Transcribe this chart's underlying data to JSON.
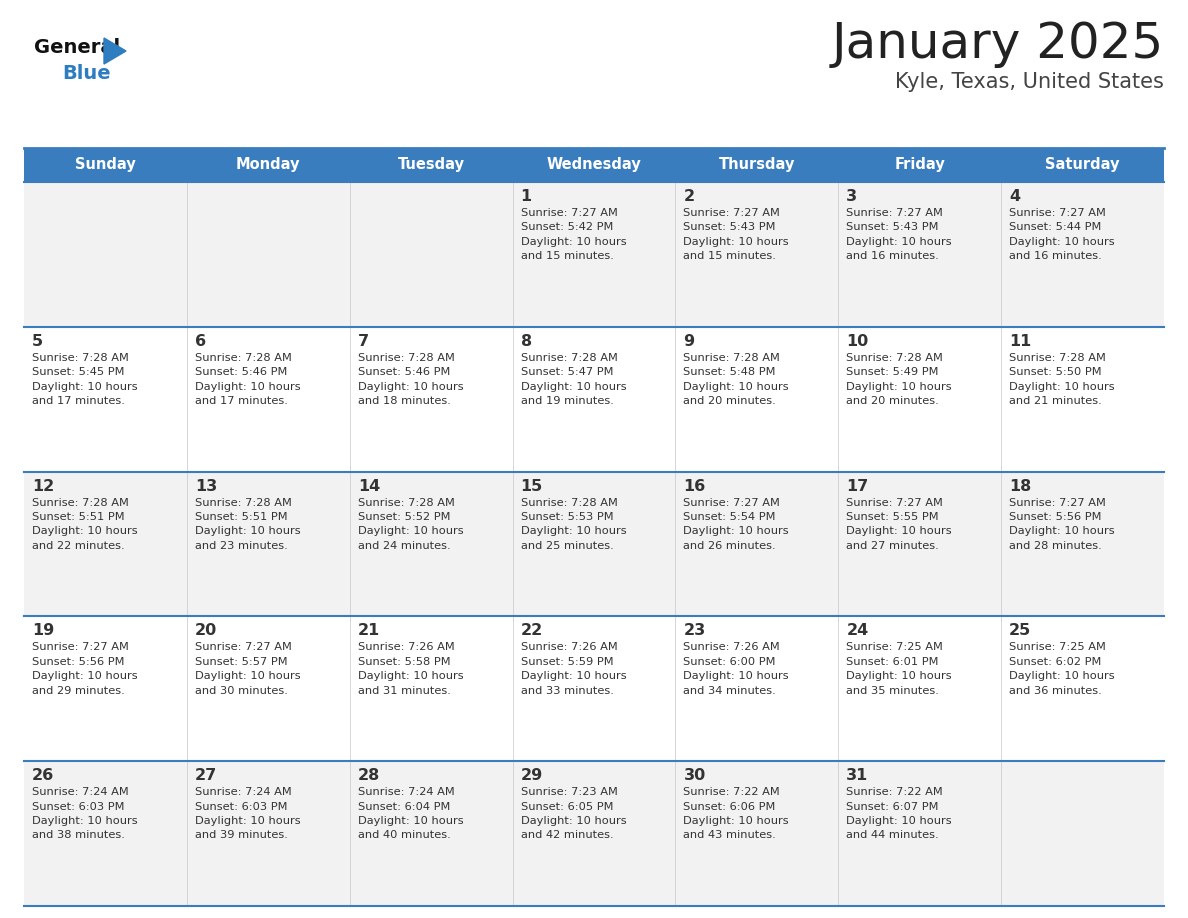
{
  "title": "January 2025",
  "subtitle": "Kyle, Texas, United States",
  "header_bg_color": "#3a7dbf",
  "header_text_color": "#ffffff",
  "cell_bg_even": "#f2f2f2",
  "cell_bg_odd": "#ffffff",
  "border_color": "#3a7dbf",
  "thin_border_color": "#c8c8c8",
  "day_names": [
    "Sunday",
    "Monday",
    "Tuesday",
    "Wednesday",
    "Thursday",
    "Friday",
    "Saturday"
  ],
  "title_color": "#222222",
  "subtitle_color": "#444444",
  "day_num_color": "#333333",
  "cell_text_color": "#333333",
  "logo_general_color": "#111111",
  "logo_blue_color": "#2e7dc0",
  "weeks": [
    [
      {
        "day": 0,
        "info": ""
      },
      {
        "day": 0,
        "info": ""
      },
      {
        "day": 0,
        "info": ""
      },
      {
        "day": 1,
        "info": "Sunrise: 7:27 AM\nSunset: 5:42 PM\nDaylight: 10 hours\nand 15 minutes."
      },
      {
        "day": 2,
        "info": "Sunrise: 7:27 AM\nSunset: 5:43 PM\nDaylight: 10 hours\nand 15 minutes."
      },
      {
        "day": 3,
        "info": "Sunrise: 7:27 AM\nSunset: 5:43 PM\nDaylight: 10 hours\nand 16 minutes."
      },
      {
        "day": 4,
        "info": "Sunrise: 7:27 AM\nSunset: 5:44 PM\nDaylight: 10 hours\nand 16 minutes."
      }
    ],
    [
      {
        "day": 5,
        "info": "Sunrise: 7:28 AM\nSunset: 5:45 PM\nDaylight: 10 hours\nand 17 minutes."
      },
      {
        "day": 6,
        "info": "Sunrise: 7:28 AM\nSunset: 5:46 PM\nDaylight: 10 hours\nand 17 minutes."
      },
      {
        "day": 7,
        "info": "Sunrise: 7:28 AM\nSunset: 5:46 PM\nDaylight: 10 hours\nand 18 minutes."
      },
      {
        "day": 8,
        "info": "Sunrise: 7:28 AM\nSunset: 5:47 PM\nDaylight: 10 hours\nand 19 minutes."
      },
      {
        "day": 9,
        "info": "Sunrise: 7:28 AM\nSunset: 5:48 PM\nDaylight: 10 hours\nand 20 minutes."
      },
      {
        "day": 10,
        "info": "Sunrise: 7:28 AM\nSunset: 5:49 PM\nDaylight: 10 hours\nand 20 minutes."
      },
      {
        "day": 11,
        "info": "Sunrise: 7:28 AM\nSunset: 5:50 PM\nDaylight: 10 hours\nand 21 minutes."
      }
    ],
    [
      {
        "day": 12,
        "info": "Sunrise: 7:28 AM\nSunset: 5:51 PM\nDaylight: 10 hours\nand 22 minutes."
      },
      {
        "day": 13,
        "info": "Sunrise: 7:28 AM\nSunset: 5:51 PM\nDaylight: 10 hours\nand 23 minutes."
      },
      {
        "day": 14,
        "info": "Sunrise: 7:28 AM\nSunset: 5:52 PM\nDaylight: 10 hours\nand 24 minutes."
      },
      {
        "day": 15,
        "info": "Sunrise: 7:28 AM\nSunset: 5:53 PM\nDaylight: 10 hours\nand 25 minutes."
      },
      {
        "day": 16,
        "info": "Sunrise: 7:27 AM\nSunset: 5:54 PM\nDaylight: 10 hours\nand 26 minutes."
      },
      {
        "day": 17,
        "info": "Sunrise: 7:27 AM\nSunset: 5:55 PM\nDaylight: 10 hours\nand 27 minutes."
      },
      {
        "day": 18,
        "info": "Sunrise: 7:27 AM\nSunset: 5:56 PM\nDaylight: 10 hours\nand 28 minutes."
      }
    ],
    [
      {
        "day": 19,
        "info": "Sunrise: 7:27 AM\nSunset: 5:56 PM\nDaylight: 10 hours\nand 29 minutes."
      },
      {
        "day": 20,
        "info": "Sunrise: 7:27 AM\nSunset: 5:57 PM\nDaylight: 10 hours\nand 30 minutes."
      },
      {
        "day": 21,
        "info": "Sunrise: 7:26 AM\nSunset: 5:58 PM\nDaylight: 10 hours\nand 31 minutes."
      },
      {
        "day": 22,
        "info": "Sunrise: 7:26 AM\nSunset: 5:59 PM\nDaylight: 10 hours\nand 33 minutes."
      },
      {
        "day": 23,
        "info": "Sunrise: 7:26 AM\nSunset: 6:00 PM\nDaylight: 10 hours\nand 34 minutes."
      },
      {
        "day": 24,
        "info": "Sunrise: 7:25 AM\nSunset: 6:01 PM\nDaylight: 10 hours\nand 35 minutes."
      },
      {
        "day": 25,
        "info": "Sunrise: 7:25 AM\nSunset: 6:02 PM\nDaylight: 10 hours\nand 36 minutes."
      }
    ],
    [
      {
        "day": 26,
        "info": "Sunrise: 7:24 AM\nSunset: 6:03 PM\nDaylight: 10 hours\nand 38 minutes."
      },
      {
        "day": 27,
        "info": "Sunrise: 7:24 AM\nSunset: 6:03 PM\nDaylight: 10 hours\nand 39 minutes."
      },
      {
        "day": 28,
        "info": "Sunrise: 7:24 AM\nSunset: 6:04 PM\nDaylight: 10 hours\nand 40 minutes."
      },
      {
        "day": 29,
        "info": "Sunrise: 7:23 AM\nSunset: 6:05 PM\nDaylight: 10 hours\nand 42 minutes."
      },
      {
        "day": 30,
        "info": "Sunrise: 7:22 AM\nSunset: 6:06 PM\nDaylight: 10 hours\nand 43 minutes."
      },
      {
        "day": 31,
        "info": "Sunrise: 7:22 AM\nSunset: 6:07 PM\nDaylight: 10 hours\nand 44 minutes."
      },
      {
        "day": 0,
        "info": ""
      }
    ]
  ]
}
